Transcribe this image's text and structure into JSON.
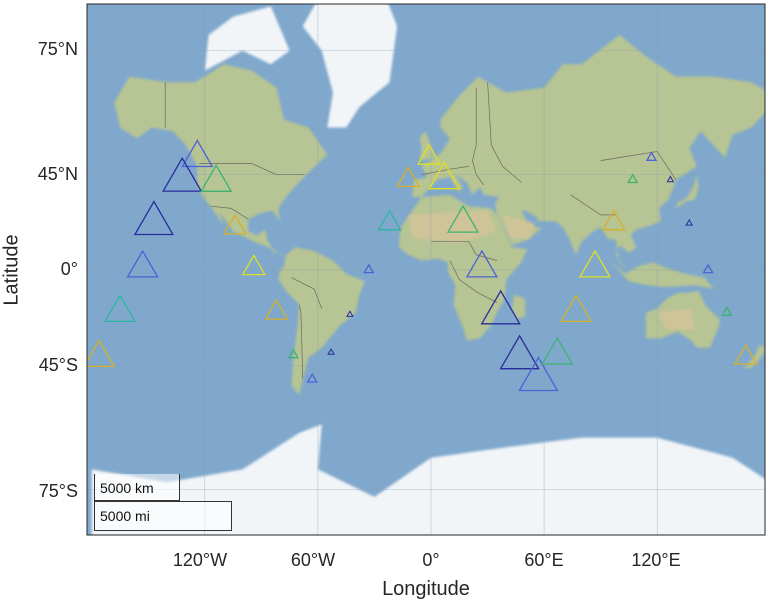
{
  "chart_data": {
    "type": "map-scatter",
    "marker": "triangle",
    "axes": {
      "xlabel": "Longitude",
      "ylabel": "Latitude",
      "lon_range": [
        -180,
        180
      ],
      "lat_range": [
        -83,
        83
      ],
      "x_ticks": [
        {
          "lon": -120,
          "label": "120°W"
        },
        {
          "lon": -60,
          "label": "60°W"
        },
        {
          "lon": 0,
          "label": "0°"
        },
        {
          "lon": 60,
          "label": "60°E"
        },
        {
          "lon": 120,
          "label": "120°E"
        }
      ],
      "y_ticks": [
        {
          "lat": 75,
          "label": "75°N"
        },
        {
          "lat": 45,
          "label": "45°N"
        },
        {
          "lat": 0,
          "label": "0°"
        },
        {
          "lat": -45,
          "label": "45°S"
        },
        {
          "lat": -75,
          "label": "75°S"
        }
      ],
      "grid": true
    },
    "scalebar": {
      "km_label": "5000 km",
      "mi_label": "5000 mi"
    },
    "points": [
      {
        "lon": -124,
        "lat": 51,
        "size": 3,
        "color": "#4a63d8"
      },
      {
        "lon": -132,
        "lat": 43,
        "size": 4,
        "color": "#2a2b9a"
      },
      {
        "lon": -114,
        "lat": 42,
        "size": 3,
        "color": "#3cb371"
      },
      {
        "lon": -147,
        "lat": 24,
        "size": 4,
        "color": "#2a2b9a"
      },
      {
        "lon": -104,
        "lat": 22,
        "size": 2,
        "color": "#d4b12a"
      },
      {
        "lon": -153,
        "lat": 1,
        "size": 3,
        "color": "#4a63d8"
      },
      {
        "lon": -94,
        "lat": 1,
        "size": 2,
        "color": "#e0e020"
      },
      {
        "lon": -165,
        "lat": -22,
        "size": 3,
        "color": "#2fb5a0"
      },
      {
        "lon": -82,
        "lat": -22,
        "size": 2,
        "color": "#d4b12a"
      },
      {
        "lon": -176,
        "lat": -42,
        "size": 3,
        "color": "#d4b12a"
      },
      {
        "lon": -73,
        "lat": -41,
        "size": 1,
        "color": "#3cb371"
      },
      {
        "lon": -63,
        "lat": -50,
        "size": 1,
        "color": "#4a63d8"
      },
      {
        "lon": -53,
        "lat": -40,
        "size": 0,
        "color": "#2a2b9a"
      },
      {
        "lon": -43,
        "lat": -23,
        "size": 0,
        "color": "#2a2b9a"
      },
      {
        "lon": -33,
        "lat": 0,
        "size": 1,
        "color": "#4a63d8"
      },
      {
        "lon": -22,
        "lat": 24,
        "size": 2,
        "color": "#2fb5a0"
      },
      {
        "lon": -12,
        "lat": 43,
        "size": 2,
        "color": "#d4b12a"
      },
      {
        "lon": -1,
        "lat": 51,
        "size": 2,
        "color": "#e0e020"
      },
      {
        "lon": 7,
        "lat": 43,
        "size": 3,
        "color": "#e0e020"
      },
      {
        "lon": 17,
        "lat": 24,
        "size": 3,
        "color": "#3cb371"
      },
      {
        "lon": 27,
        "lat": 1,
        "size": 3,
        "color": "#4a63d8"
      },
      {
        "lon": 37,
        "lat": -22,
        "size": 4,
        "color": "#2a2b9a"
      },
      {
        "lon": 47,
        "lat": -42,
        "size": 4,
        "color": "#2a2b9a"
      },
      {
        "lon": 57,
        "lat": -50,
        "size": 4,
        "color": "#4a63d8"
      },
      {
        "lon": 67,
        "lat": -41,
        "size": 3,
        "color": "#3cb371"
      },
      {
        "lon": 77,
        "lat": -22,
        "size": 3,
        "color": "#d4b12a"
      },
      {
        "lon": 87,
        "lat": 1,
        "size": 3,
        "color": "#e0e020"
      },
      {
        "lon": 97,
        "lat": 24,
        "size": 2,
        "color": "#d4b12a"
      },
      {
        "lon": 107,
        "lat": 43,
        "size": 1,
        "color": "#3cb371"
      },
      {
        "lon": 117,
        "lat": 51,
        "size": 1,
        "color": "#4a63d8"
      },
      {
        "lon": 127,
        "lat": 43,
        "size": 0,
        "color": "#2a2b9a"
      },
      {
        "lon": 137,
        "lat": 24,
        "size": 0,
        "color": "#2a2b9a"
      },
      {
        "lon": 147,
        "lat": 0,
        "size": 1,
        "color": "#4a63d8"
      },
      {
        "lon": 157,
        "lat": -22,
        "size": 1,
        "color": "#3cb371"
      },
      {
        "lon": 167,
        "lat": -42,
        "size": 2,
        "color": "#d4b12a"
      }
    ]
  },
  "colors": {
    "ocean": "#7fa8cc",
    "ocean_deep": "#6f9cc4",
    "land": "#b7c493",
    "land_desert": "#d9c49a",
    "ice": "#f2f5f8",
    "border": "#555555",
    "grid": "#8a9db0"
  }
}
